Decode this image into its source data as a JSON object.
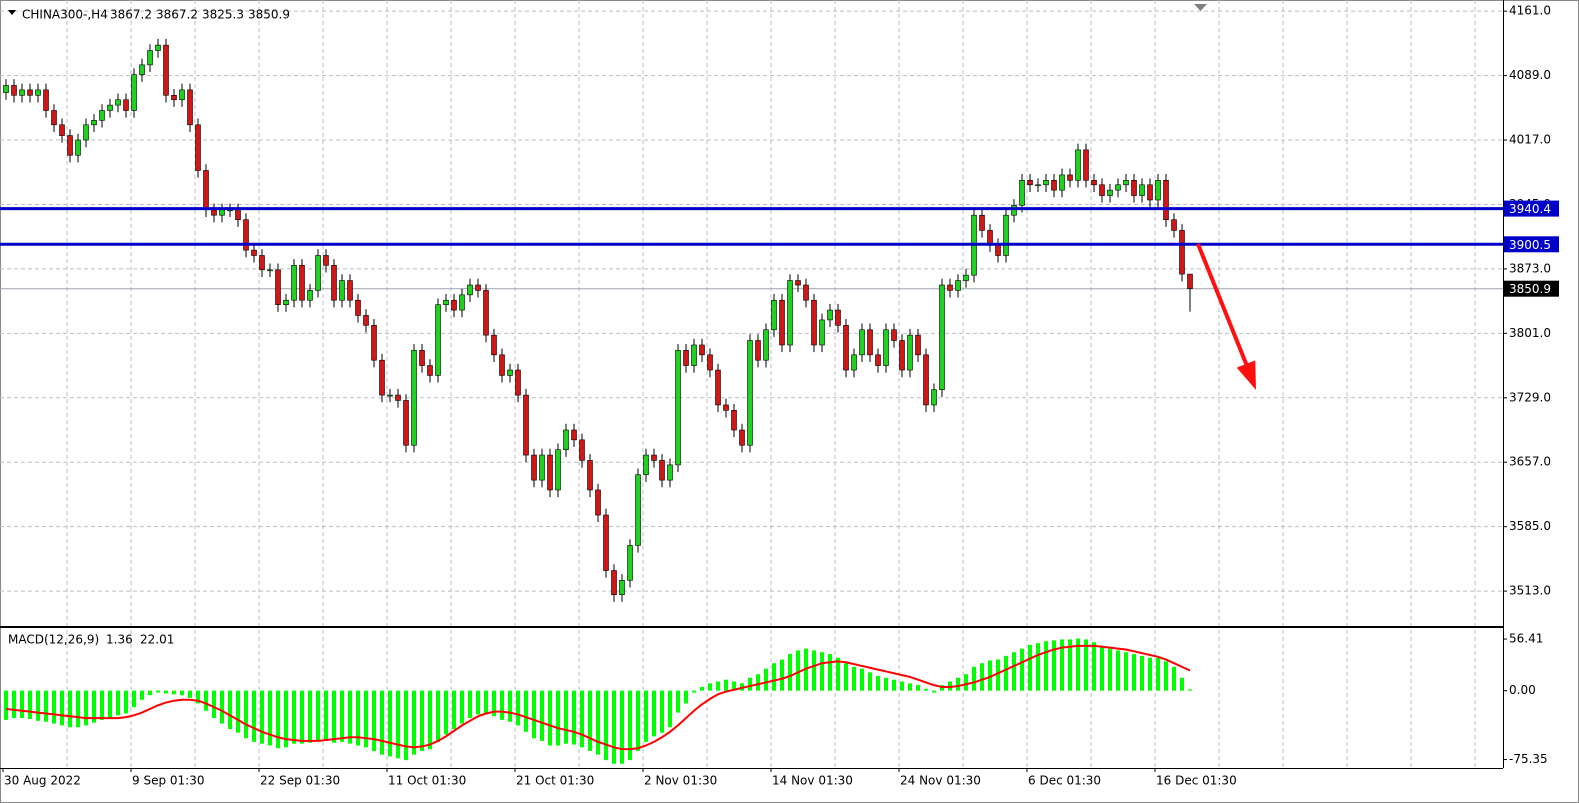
{
  "chart_data": [
    {
      "type": "candlestick",
      "symbol": "CHINA300-,H4",
      "categories": [
        "30 Aug 2022",
        null,
        null,
        null,
        null,
        null,
        null,
        null,
        null,
        null,
        null,
        null,
        null,
        null,
        null,
        null,
        "9 Sep 01:30",
        null,
        null,
        null,
        null,
        null,
        null,
        null,
        null,
        null,
        null,
        null,
        null,
        null,
        null,
        null,
        "22 Sep 01:30",
        null,
        null,
        null,
        null,
        null,
        null,
        null,
        null,
        null,
        null,
        null,
        null,
        null,
        null,
        null,
        "11 Oct 01:30",
        null,
        null,
        null,
        null,
        null,
        null,
        null,
        null,
        null,
        null,
        null,
        null,
        null,
        null,
        null,
        "21 Oct 01:30",
        null,
        null,
        null,
        null,
        null,
        null,
        null,
        null,
        null,
        null,
        null,
        null,
        null,
        null,
        null,
        "2 Nov 01:30",
        null,
        null,
        null,
        null,
        null,
        null,
        null,
        null,
        null,
        null,
        null,
        null,
        null,
        null,
        null,
        "14 Nov 01:30",
        null,
        null,
        null,
        null,
        null,
        null,
        null,
        null,
        null,
        null,
        null,
        null,
        null,
        null,
        null,
        "24 Nov 01:30",
        null,
        null,
        null,
        null,
        null,
        null,
        null,
        null,
        null,
        null,
        null,
        null,
        null,
        null,
        null,
        "6 Dec 01:30",
        null,
        null,
        null,
        null,
        null,
        null,
        null,
        null,
        null,
        null,
        null,
        null,
        null,
        null,
        null,
        "16 Dec 01:30",
        null,
        null,
        null,
        null
      ],
      "open": [
        4070,
        4078,
        4067,
        4073,
        4067,
        4073,
        4050,
        4034,
        4022,
        4000,
        4017,
        4034,
        4039,
        4050,
        4056,
        4062,
        4050,
        4090,
        4101,
        4117,
        4123,
        4067,
        4062,
        4073,
        4034,
        3983,
        3939,
        3933,
        3939,
        3939,
        3928,
        3894,
        3888,
        3872,
        3872,
        3833,
        3838,
        3877,
        3838,
        3849,
        3888,
        3877,
        3838,
        3860,
        3838,
        3821,
        3810,
        3771,
        3732,
        3732,
        3726,
        3676,
        3782,
        3765,
        3754,
        3833,
        3838,
        3827,
        3844,
        3855,
        3849,
        3799,
        3777,
        3754,
        3760,
        3732,
        3665,
        3637,
        3665,
        3626,
        3671,
        3693,
        3682,
        3659,
        3626,
        3598,
        3536,
        3509,
        3525,
        3564,
        3643,
        3665,
        3659,
        3637,
        3654,
        3782,
        3765,
        3788,
        3777,
        3760,
        3721,
        3715,
        3693,
        3676,
        3793,
        3771,
        3805,
        3838,
        3788,
        3860,
        3855,
        3838,
        3788,
        3816,
        3827,
        3810,
        3760,
        3777,
        3805,
        3777,
        3765,
        3805,
        3793,
        3760,
        3799,
        3777,
        3721,
        3738,
        3855,
        3849,
        3860,
        3866,
        3933,
        3916,
        3900,
        3888,
        3933,
        3944,
        3972,
        3967,
        3967,
        3972,
        3961,
        3978,
        3972,
        4006,
        3972,
        3967,
        3955,
        3961,
        3967,
        3972,
        3955,
        3967,
        3950,
        3972,
        3928,
        3916,
        3867.2
      ],
      "high": [
        4085,
        4085,
        4080,
        4080,
        4080,
        4080,
        4057,
        4041,
        4029,
        4024,
        4041,
        4046,
        4057,
        4063,
        4069,
        4069,
        4097,
        4108,
        4124,
        4130,
        4130,
        4074,
        4080,
        4080,
        4041,
        3990,
        3946,
        3946,
        3946,
        3946,
        3935,
        3901,
        3895,
        3879,
        3879,
        3845,
        3884,
        3884,
        3856,
        3895,
        3895,
        3884,
        3867,
        3867,
        3845,
        3828,
        3817,
        3778,
        3739,
        3739,
        3733,
        3789,
        3789,
        3772,
        3840,
        3845,
        3845,
        3851,
        3862,
        3862,
        3856,
        3806,
        3784,
        3767,
        3767,
        3739,
        3672,
        3672,
        3672,
        3678,
        3700,
        3700,
        3689,
        3666,
        3633,
        3605,
        3543,
        3532,
        3571,
        3650,
        3672,
        3672,
        3666,
        3661,
        3789,
        3789,
        3795,
        3795,
        3784,
        3767,
        3728,
        3722,
        3700,
        3800,
        3800,
        3812,
        3845,
        3845,
        3867,
        3867,
        3862,
        3845,
        3823,
        3834,
        3834,
        3817,
        3784,
        3812,
        3812,
        3784,
        3812,
        3812,
        3800,
        3806,
        3806,
        3784,
        3745,
        3862,
        3862,
        3867,
        3873,
        3940,
        3940,
        3923,
        3907,
        3940,
        3951,
        3979,
        3979,
        3974,
        3979,
        3979,
        3985,
        3985,
        4013,
        4013,
        3979,
        3974,
        3968,
        3974,
        3979,
        3979,
        3974,
        3974,
        3979,
        3979,
        3935,
        3923,
        3867.2
      ],
      "low": [
        4062,
        4059,
        4059,
        4059,
        4059,
        4042,
        4026,
        4014,
        3992,
        3992,
        4009,
        4026,
        4031,
        4042,
        4048,
        4042,
        4042,
        4082,
        4093,
        4109,
        4059,
        4054,
        4054,
        4026,
        3975,
        3931,
        3925,
        3925,
        3931,
        3920,
        3886,
        3880,
        3864,
        3864,
        3825,
        3825,
        3830,
        3830,
        3830,
        3841,
        3869,
        3830,
        3830,
        3830,
        3813,
        3802,
        3763,
        3724,
        3724,
        3718,
        3668,
        3668,
        3757,
        3746,
        3746,
        3825,
        3819,
        3819,
        3836,
        3841,
        3791,
        3769,
        3746,
        3746,
        3724,
        3657,
        3629,
        3629,
        3618,
        3618,
        3663,
        3674,
        3651,
        3618,
        3590,
        3528,
        3501,
        3501,
        3517,
        3556,
        3635,
        3651,
        3629,
        3629,
        3646,
        3757,
        3757,
        3769,
        3752,
        3713,
        3707,
        3685,
        3668,
        3668,
        3763,
        3763,
        3797,
        3780,
        3780,
        3847,
        3830,
        3780,
        3780,
        3808,
        3802,
        3752,
        3752,
        3769,
        3769,
        3757,
        3757,
        3785,
        3752,
        3752,
        3769,
        3713,
        3713,
        3730,
        3841,
        3841,
        3852,
        3858,
        3908,
        3892,
        3880,
        3880,
        3925,
        3936,
        3959,
        3959,
        3959,
        3953,
        3953,
        3964,
        3964,
        3964,
        3959,
        3947,
        3947,
        3953,
        3959,
        3947,
        3947,
        3942,
        3942,
        3920,
        3908,
        3859,
        3825.3
      ],
      "close": [
        4078,
        4067,
        4073,
        4067,
        4073,
        4050,
        4034,
        4022,
        4000,
        4017,
        4034,
        4039,
        4050,
        4056,
        4062,
        4050,
        4090,
        4101,
        4117,
        4123,
        4067,
        4062,
        4073,
        4034,
        3983,
        3939,
        3933,
        3939,
        3939,
        3928,
        3894,
        3888,
        3872,
        3872,
        3833,
        3838,
        3877,
        3838,
        3849,
        3888,
        3877,
        3838,
        3860,
        3838,
        3821,
        3810,
        3771,
        3732,
        3732,
        3726,
        3676,
        3782,
        3765,
        3754,
        3833,
        3838,
        3827,
        3844,
        3855,
        3849,
        3799,
        3777,
        3754,
        3760,
        3732,
        3665,
        3637,
        3665,
        3626,
        3671,
        3693,
        3682,
        3659,
        3626,
        3598,
        3536,
        3509,
        3525,
        3564,
        3643,
        3665,
        3659,
        3637,
        3654,
        3782,
        3765,
        3788,
        3777,
        3760,
        3721,
        3715,
        3693,
        3676,
        3793,
        3771,
        3805,
        3838,
        3788,
        3860,
        3855,
        3838,
        3788,
        3816,
        3827,
        3810,
        3760,
        3777,
        3805,
        3777,
        3765,
        3805,
        3793,
        3760,
        3799,
        3777,
        3721,
        3738,
        3855,
        3849,
        3860,
        3866,
        3933,
        3916,
        3900,
        3888,
        3933,
        3944,
        3972,
        3967,
        3967,
        3972,
        3961,
        3978,
        3972,
        4006,
        3972,
        3967,
        3955,
        3961,
        3967,
        3972,
        3955,
        3967,
        3950,
        3972,
        3928,
        3916,
        3867.2,
        3850.9
      ],
      "colors": {
        "up": "#1fd21f",
        "down": "#d01818",
        "wick": "#000000"
      },
      "ylim": [
        3474,
        4169
      ],
      "yticks": [
        {
          "value": 4161,
          "label": "4161.0"
        },
        {
          "value": 4089,
          "label": "4089.0"
        },
        {
          "value": 4017,
          "label": "4017.0"
        },
        {
          "value": 3945,
          "label": "3945.0"
        },
        {
          "value": 3873,
          "label": "3873.0"
        },
        {
          "value": 3801,
          "label": "3801.0"
        },
        {
          "value": 3729,
          "label": "3729.0"
        },
        {
          "value": 3657,
          "label": "3657.0"
        },
        {
          "value": 3585,
          "label": "3585.0"
        },
        {
          "value": 3513,
          "label": "3513.0"
        }
      ],
      "levels": [
        {
          "value": 3940.4,
          "color": "#0000c8"
        },
        {
          "value": 3900.5,
          "color": "#0000c8"
        }
      ],
      "grid": true
    },
    {
      "type": "macd",
      "label": "MACD(12,26,9)",
      "bars": {
        "color": "#00ff00",
        "values": [
          -32,
          -30,
          -30,
          -31,
          -33,
          -34,
          -36,
          -38,
          -40,
          -40,
          -38,
          -35,
          -32,
          -30,
          -27,
          -25,
          -18,
          -10,
          -5,
          -2,
          -3,
          -4,
          -5,
          -8,
          -14,
          -22,
          -30,
          -36,
          -42,
          -46,
          -52,
          -56,
          -58,
          -60,
          -63,
          -62,
          -58,
          -58,
          -57,
          -54,
          -55,
          -57,
          -56,
          -58,
          -60,
          -62,
          -66,
          -70,
          -72,
          -74,
          -76,
          -70,
          -66,
          -64,
          -56,
          -48,
          -42,
          -36,
          -30,
          -26,
          -26,
          -28,
          -32,
          -34,
          -38,
          -45,
          -52,
          -55,
          -60,
          -60,
          -58,
          -59,
          -62,
          -66,
          -70,
          -76,
          -80,
          -80,
          -76,
          -66,
          -56,
          -50,
          -46,
          -40,
          -24,
          -14,
          -2,
          4,
          8,
          10,
          12,
          10,
          8,
          14,
          18,
          24,
          30,
          34,
          40,
          44,
          46,
          44,
          42,
          40,
          36,
          30,
          26,
          24,
          20,
          16,
          14,
          12,
          10,
          8,
          6,
          2,
          -2,
          6,
          10,
          14,
          18,
          26,
          30,
          33,
          34,
          38,
          42,
          46,
          50,
          52,
          54,
          55,
          56,
          56,
          57,
          56,
          53,
          49,
          46,
          44,
          42,
          40,
          38,
          36,
          36,
          32,
          26,
          14,
          1.36
        ]
      },
      "line": {
        "color": "#ff0000",
        "values": [
          -20,
          -21,
          -22,
          -23,
          -24,
          -25,
          -26,
          -27,
          -28,
          -29,
          -30,
          -30,
          -30,
          -30,
          -30,
          -29,
          -27,
          -24,
          -20,
          -16,
          -13,
          -11,
          -10,
          -10,
          -11,
          -14,
          -18,
          -22,
          -27,
          -32,
          -37,
          -41,
          -45,
          -48,
          -51,
          -53,
          -54,
          -55,
          -55,
          -55,
          -54,
          -53,
          -52,
          -51,
          -51,
          -52,
          -53,
          -55,
          -57,
          -59,
          -61,
          -62,
          -61,
          -59,
          -55,
          -50,
          -44,
          -38,
          -33,
          -28,
          -25,
          -23,
          -23,
          -24,
          -26,
          -29,
          -32,
          -35,
          -38,
          -41,
          -43,
          -45,
          -48,
          -52,
          -56,
          -59,
          -62,
          -64,
          -64,
          -63,
          -60,
          -56,
          -51,
          -45,
          -38,
          -30,
          -22,
          -15,
          -9,
          -4,
          -1,
          1,
          3,
          5,
          7,
          9,
          11,
          13,
          16,
          20,
          24,
          27,
          30,
          31,
          32,
          31,
          29,
          27,
          25,
          23,
          21,
          19,
          17,
          15,
          12,
          9,
          6,
          4,
          4,
          5,
          7,
          9,
          12,
          15,
          19,
          23,
          27,
          31,
          35,
          39,
          42,
          45,
          47,
          48,
          49,
          49,
          49,
          48,
          47,
          46,
          45,
          43,
          41,
          39,
          37,
          34,
          30,
          26,
          22.01
        ]
      },
      "ylim": [
        -84.6,
        68.5
      ],
      "yticks": [
        {
          "value": 56.41,
          "label": "56.41"
        },
        {
          "value": 0,
          "label": "0.00"
        },
        {
          "value": -75.35,
          "label": "-75.35"
        }
      ]
    }
  ]
}
